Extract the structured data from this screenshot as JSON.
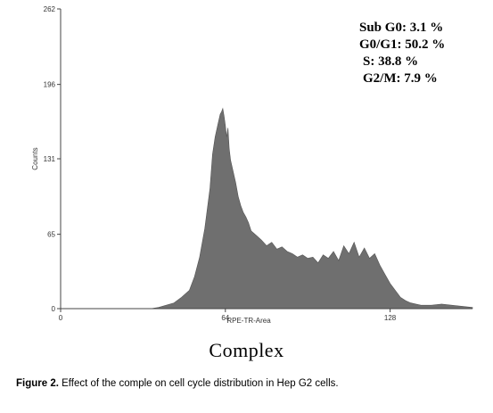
{
  "chart_data": {
    "type": "area",
    "xlabel": "RPE-TR-Area",
    "ylabel": "Counts",
    "x_ticks": [
      "0",
      "64",
      "128"
    ],
    "y_ticks": [
      "0",
      "65",
      "131",
      "196",
      "262"
    ],
    "xlim": [
      0,
      160
    ],
    "ylim": [
      0,
      262
    ],
    "fill_color": "#6f6f6f",
    "annotations": [
      "Sub G0: 3.1 %",
      "G0/G1: 50.2 %",
      "S: 38.8 %",
      "G2/M: 7.9 %"
    ],
    "x": [
      35,
      38,
      41,
      44,
      47,
      50,
      52,
      54,
      56,
      58,
      59,
      60,
      61,
      62,
      62.5,
      63,
      63.5,
      64,
      64.5,
      65,
      65.5,
      66,
      67,
      68,
      69,
      70,
      71,
      72,
      73,
      74,
      76,
      78,
      80,
      82,
      84,
      86,
      88,
      90,
      92,
      94,
      96,
      98,
      100,
      102,
      104,
      106,
      108,
      110,
      112,
      114,
      116,
      118,
      120,
      122,
      124,
      126,
      128,
      130,
      132,
      134,
      136,
      138,
      140,
      144,
      148,
      152,
      156,
      160
    ],
    "values": [
      0,
      1,
      3,
      5,
      10,
      16,
      28,
      45,
      70,
      105,
      135,
      150,
      160,
      170,
      172,
      175,
      168,
      160,
      150,
      158,
      140,
      130,
      120,
      110,
      98,
      90,
      84,
      80,
      75,
      68,
      64,
      60,
      55,
      58,
      52,
      54,
      50,
      48,
      45,
      47,
      44,
      45,
      40,
      47,
      44,
      50,
      42,
      55,
      48,
      58,
      45,
      53,
      44,
      48,
      38,
      30,
      22,
      16,
      10,
      7,
      5,
      4,
      3,
      3,
      4,
      3,
      2,
      1
    ]
  },
  "caption": {
    "title": "Complex",
    "figure_label": "Figure 2.",
    "figure_text": "Effect of the comple on cell cycle distribution in Hep G2 cells."
  }
}
